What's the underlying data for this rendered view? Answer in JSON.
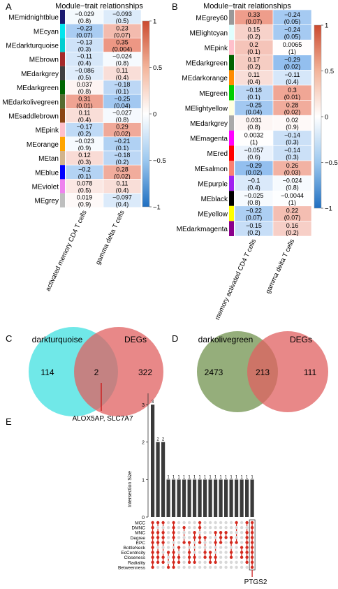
{
  "panels": {
    "A": "A",
    "B": "B",
    "C": "C",
    "D": "D",
    "E": "E"
  },
  "heatmap_A": {
    "title": "Module−trait relationships",
    "columns": [
      "activated  memory CD4 T cells",
      "gamma delta T cells"
    ],
    "rows": [
      {
        "module": "MEmidnightblue",
        "color": "#191970",
        "cells": [
          {
            "r": "−0.029",
            "p": "(0.8)",
            "v": -0.029
          },
          {
            "r": "−0.093",
            "p": "(0.5)",
            "v": -0.093
          }
        ]
      },
      {
        "module": "MEcyan",
        "color": "#00e5ee",
        "cells": [
          {
            "r": "−0.23",
            "p": "(0.07)",
            "v": -0.23
          },
          {
            "r": "0.23",
            "p": "(0.07)",
            "v": 0.23
          }
        ]
      },
      {
        "module": "MEdarkturquoise",
        "color": "#00ced1",
        "cells": [
          {
            "r": "−0.13",
            "p": "(0.3)",
            "v": -0.13
          },
          {
            "r": "0.35",
            "p": "(0.004)",
            "v": 0.35
          }
        ]
      },
      {
        "module": "MEbrown",
        "color": "#a52a2a",
        "cells": [
          {
            "r": "−0.11",
            "p": "(0.4)",
            "v": -0.11
          },
          {
            "r": "−0.024",
            "p": "(0.8)",
            "v": -0.024
          }
        ]
      },
      {
        "module": "MEdarkgrey",
        "color": "#404040",
        "cells": [
          {
            "r": "−0.086",
            "p": "(0.5)",
            "v": -0.086
          },
          {
            "r": "0.11",
            "p": "(0.4)",
            "v": 0.11
          }
        ]
      },
      {
        "module": "MEdarkgreen",
        "color": "#006400",
        "cells": [
          {
            "r": "0.037",
            "p": "(0.8)",
            "v": 0.037
          },
          {
            "r": "−0.18",
            "p": "(0.1)",
            "v": -0.18
          }
        ]
      },
      {
        "module": "MEdarkolivegreen",
        "color": "#556b2f",
        "cells": [
          {
            "r": "0.31",
            "p": "(0.01)",
            "v": 0.31
          },
          {
            "r": "−0.25",
            "p": "(0.04)",
            "v": -0.25
          }
        ]
      },
      {
        "module": "MEsaddlebrown",
        "color": "#8b4513",
        "cells": [
          {
            "r": "0.11",
            "p": "(0.4)",
            "v": 0.11
          },
          {
            "r": "−0.027",
            "p": "(0.8)",
            "v": -0.027
          }
        ]
      },
      {
        "module": "MEpink",
        "color": "#ffc0cb",
        "cells": [
          {
            "r": "−0.17",
            "p": "(0.2)",
            "v": -0.17
          },
          {
            "r": "0.29",
            "p": "(0.02)",
            "v": 0.29
          }
        ]
      },
      {
        "module": "MEorange",
        "color": "#ffa500",
        "cells": [
          {
            "r": "−0.023",
            "p": "(0.9)",
            "v": -0.023
          },
          {
            "r": "−0.21",
            "p": "(0.1)",
            "v": -0.21
          }
        ]
      },
      {
        "module": "MEtan",
        "color": "#d2b48c",
        "cells": [
          {
            "r": "0.12",
            "p": "(0.3)",
            "v": 0.12
          },
          {
            "r": "−0.18",
            "p": "(0.2)",
            "v": -0.18
          }
        ]
      },
      {
        "module": "MEblue",
        "color": "#0000ff",
        "cells": [
          {
            "r": "−0.2",
            "p": "(0.1)",
            "v": -0.2
          },
          {
            "r": "0.28",
            "p": "(0.02)",
            "v": 0.28
          }
        ]
      },
      {
        "module": "MEviolet",
        "color": "#ee82ee",
        "cells": [
          {
            "r": "0.078",
            "p": "(0.5)",
            "v": 0.078
          },
          {
            "r": "0.11",
            "p": "(0.4)",
            "v": 0.11
          }
        ]
      },
      {
        "module": "MEgrey",
        "color": "#bebebe",
        "cells": [
          {
            "r": "0.019",
            "p": "(0.9)",
            "v": 0.019
          },
          {
            "r": "−0.097",
            "p": "(0.4)",
            "v": -0.097
          }
        ]
      }
    ],
    "scale_labels": [
      "1",
      "0.5",
      "0",
      "−0.5",
      "−1"
    ]
  },
  "heatmap_B": {
    "title": "Module−trait relationships",
    "columns": [
      "memory activated CD4 T cells",
      "gamma delta T cells"
    ],
    "rows": [
      {
        "module": "MEgrey60",
        "color": "#999999",
        "cells": [
          {
            "r": "0.33",
            "p": "(0.07)",
            "v": 0.33
          },
          {
            "r": "−0.24",
            "p": "(0.05)",
            "v": -0.24
          }
        ]
      },
      {
        "module": "MElightcyan",
        "color": "#e0ffff",
        "cells": [
          {
            "r": "0.15",
            "p": "(0.2)",
            "v": 0.15
          },
          {
            "r": "−0.24",
            "p": "(0.05)",
            "v": -0.24
          }
        ]
      },
      {
        "module": "MEpink",
        "color": "#ffc0cb",
        "cells": [
          {
            "r": "0.2",
            "p": "(0.1)",
            "v": 0.2
          },
          {
            "r": "0.0065",
            "p": "(1)",
            "v": 0.0065
          }
        ]
      },
      {
        "module": "MEdarkgreen",
        "color": "#006400",
        "cells": [
          {
            "r": "0.17",
            "p": "(0.2)",
            "v": 0.17
          },
          {
            "r": "−0.29",
            "p": "(0.02)",
            "v": -0.29
          }
        ]
      },
      {
        "module": "MEdarkorange",
        "color": "#ff8c00",
        "cells": [
          {
            "r": "0.11",
            "p": "(0.4)",
            "v": 0.11
          },
          {
            "r": "−0.11",
            "p": "(0.4)",
            "v": -0.11
          }
        ]
      },
      {
        "module": "MEgreen",
        "color": "#00cd00",
        "cells": [
          {
            "r": "−0.18",
            "p": "(0.1)",
            "v": -0.18
          },
          {
            "r": "0.3",
            "p": "(0.01)",
            "v": 0.3
          }
        ]
      },
      {
        "module": "MElightyellow",
        "color": "#ffffe0",
        "cells": [
          {
            "r": "−0.25",
            "p": "(0.04)",
            "v": -0.25
          },
          {
            "r": "0.28",
            "p": "(0.02)",
            "v": 0.28
          }
        ]
      },
      {
        "module": "MEdarkgrey",
        "color": "#a9a9a9",
        "cells": [
          {
            "r": "0.031",
            "p": "(0.8)",
            "v": 0.031
          },
          {
            "r": "0.02",
            "p": "(0.9)",
            "v": 0.02
          }
        ]
      },
      {
        "module": "MEmagenta",
        "color": "#ff00ff",
        "cells": [
          {
            "r": "0.0032",
            "p": "(1)",
            "v": 0.0032
          },
          {
            "r": "−0.14",
            "p": "(0.3)",
            "v": -0.14
          }
        ]
      },
      {
        "module": "MEred",
        "color": "#ff0000",
        "cells": [
          {
            "r": "−0.057",
            "p": "(0.6)",
            "v": -0.057
          },
          {
            "r": "−0.14",
            "p": "(0.3)",
            "v": -0.14
          }
        ]
      },
      {
        "module": "MEsalmon",
        "color": "#fa8072",
        "cells": [
          {
            "r": "−0.29",
            "p": "(0.02)",
            "v": -0.29
          },
          {
            "r": "0.26",
            "p": "(0.03)",
            "v": 0.26
          }
        ]
      },
      {
        "module": "MEpurple",
        "color": "#a020f0",
        "cells": [
          {
            "r": "−0.1",
            "p": "(0.4)",
            "v": -0.1
          },
          {
            "r": "−0.024",
            "p": "(0.8)",
            "v": -0.024
          }
        ]
      },
      {
        "module": "MEblack",
        "color": "#000000",
        "cells": [
          {
            "r": "−0.025",
            "p": "(0.8)",
            "v": -0.025
          },
          {
            "r": "−0.0044",
            "p": "(1)",
            "v": -0.0044
          }
        ]
      },
      {
        "module": "MEyellow",
        "color": "#ffff00",
        "cells": [
          {
            "r": "−0.22",
            "p": "(0.07)",
            "v": -0.22
          },
          {
            "r": "0.22",
            "p": "(0.07)",
            "v": 0.22
          }
        ]
      },
      {
        "module": "MEdarkmagenta",
        "color": "#8b008b",
        "cells": [
          {
            "r": "−0.15",
            "p": "(0.2)",
            "v": -0.15
          },
          {
            "r": "0.16",
            "p": "(0.2)",
            "v": 0.16
          }
        ]
      }
    ],
    "scale_labels": [
      "1",
      "0.5",
      "0",
      "−0.5",
      "−1"
    ]
  },
  "venn_C": {
    "left_label": "darkturquoise",
    "right_label": "DEGs",
    "left_only": "114",
    "overlap": "2",
    "right_only": "322",
    "left_color": "#40e0e0",
    "right_color": "#e06060",
    "annotation": "ALOX5AP, SLC7A7"
  },
  "venn_D": {
    "left_label": "darkolivegreen",
    "right_label": "DEGs",
    "left_only": "2473",
    "overlap": "213",
    "right_only": "111",
    "left_color": "#7a9a5a",
    "right_color": "#e06060"
  },
  "chart_data": {
    "type": "bar",
    "ylabel": "Intersection Size",
    "yticks": [
      0,
      1,
      2,
      3
    ],
    "ylim": [
      0,
      3.3
    ],
    "values": [
      3,
      2,
      2,
      1,
      1,
      1,
      1,
      1,
      1,
      1,
      1,
      1,
      1,
      1,
      1,
      1,
      1,
      1,
      1,
      1
    ],
    "sets": [
      "MCC",
      "DMNC",
      "MNC",
      "Degree",
      "EPC",
      "BottleNeck",
      "EcCentricity",
      "Closeness",
      "Radiality",
      "Betweenness"
    ],
    "matrix": [
      [
        0,
        0,
        1,
        2,
        3,
        4,
        5,
        6,
        7,
        8,
        9
      ],
      [
        0,
        2,
        3,
        4,
        6,
        7,
        8
      ],
      [
        0,
        2,
        3,
        4,
        7,
        8
      ],
      [
        6,
        9
      ],
      [
        0,
        1,
        2,
        3,
        6,
        7,
        8,
        9
      ],
      [
        5,
        7,
        8
      ],
      [
        1,
        4
      ],
      [
        4,
        6,
        7,
        8
      ],
      [
        2,
        3,
        7,
        8
      ],
      [
        0,
        1,
        3,
        4
      ],
      [
        3,
        6,
        7
      ],
      [
        6,
        7,
        8
      ],
      [
        2,
        4,
        7,
        8
      ],
      [
        2,
        3,
        4
      ],
      [
        2,
        3
      ],
      [
        3,
        4,
        6,
        7
      ],
      [
        0,
        4
      ],
      [
        5,
        6,
        7
      ],
      [
        0,
        2,
        3,
        4,
        5,
        6,
        7,
        8
      ],
      [
        0,
        1,
        2,
        3,
        4,
        5,
        6,
        7,
        8,
        9
      ]
    ],
    "highlight_column": 19,
    "annotation": "PTGS2"
  }
}
